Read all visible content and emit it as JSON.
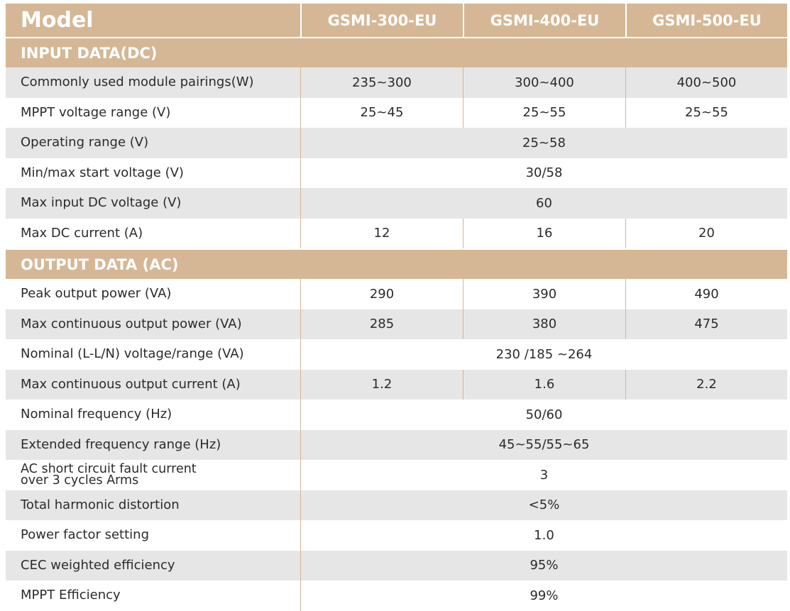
{
  "header": {
    "title": "Model",
    "models": [
      "GSMI-300-EU",
      "GSMI-400-EU",
      "GSMI-500-EU"
    ]
  },
  "input_section": {
    "title": "INPUT DATA(DC)",
    "rows": [
      {
        "label": "Commonly used module pairings(W)",
        "values": [
          "235~300",
          "300~400",
          "400~500"
        ]
      },
      {
        "label": "MPPT voltage range (V)",
        "values": [
          "25~45",
          "25~55",
          "25~55"
        ]
      },
      {
        "label": "Operating range (V)",
        "value": "25~58"
      },
      {
        "label": "Min/max start voltage (V)",
        "value": "30/58"
      },
      {
        "label": "Max input DC voltage (V)",
        "value": "60"
      },
      {
        "label": "Max DC current (A)",
        "values": [
          "12",
          "16",
          "20"
        ]
      }
    ]
  },
  "output_section": {
    "title": "OUTPUT DATA (AC)",
    "rows": [
      {
        "label": "Peak output power (VA)",
        "values": [
          "290",
          "390",
          "490"
        ]
      },
      {
        "label": "Max continuous output power (VA)",
        "values": [
          "285",
          "380",
          "475"
        ]
      },
      {
        "label": "Nominal (L-L/N) voltage/range (VA)",
        "value": "230 /185 ~264"
      },
      {
        "label": "Max continuous output current (A)",
        "values": [
          "1.2",
          "1.6",
          "2.2"
        ]
      },
      {
        "label": "Nominal frequency (Hz)",
        "value": "50/60"
      },
      {
        "label": "Extended frequency range (Hz)",
        "value": "45~55/55~65"
      },
      {
        "label_line1": "AC short circuit fault current",
        "label_line2": "over 3 cycles Arms",
        "value": "3"
      },
      {
        "label": "Total harmonic distortion",
        "value": "<5%"
      },
      {
        "label": "Power factor setting",
        "value": "1.0"
      },
      {
        "label": "CEC weighted efficiency",
        "value": "95%"
      },
      {
        "label": "MPPT Efficiency",
        "value": "99%"
      }
    ]
  }
}
